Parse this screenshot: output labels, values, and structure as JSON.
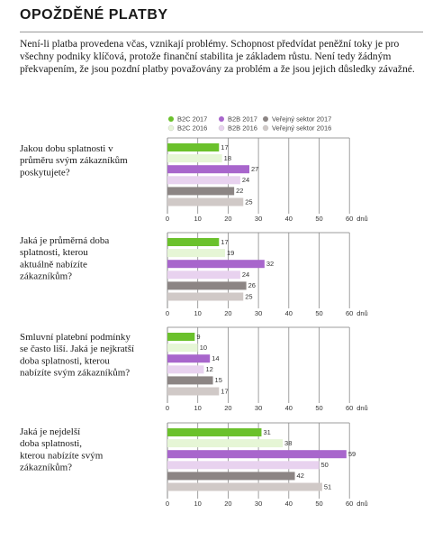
{
  "page": {
    "title": "OPOŽDĚNÉ PLATBY",
    "intro": "Není-li platba provedena včas, vznikají problémy. Schopnost předvídat peněžní toky je pro všechny podniky klíčová, protože finanční stabilita je základem růstu. Není tedy žádným překvapením, že jsou pozdní platby považovány za problém a že jsou jejich důsledky závažné."
  },
  "chart_data": {
    "type": "bar",
    "orientation": "horizontal",
    "unit": "dnů",
    "xlim": [
      0,
      60
    ],
    "ticks": [
      0,
      10,
      20,
      30,
      40,
      50,
      60
    ],
    "grid": true,
    "legend_position": "top-right",
    "series": [
      {
        "name": "B2C 2017",
        "color": "#6bc12c"
      },
      {
        "name": "B2C 2016",
        "color": "#e6f6d6"
      },
      {
        "name": "B2B 2017",
        "color": "#a866cc"
      },
      {
        "name": "B2B 2016",
        "color": "#e8d2ef"
      },
      {
        "name": "Veřejný sektor 2017",
        "color": "#8c8584"
      },
      {
        "name": "Veřejný sektor 2016",
        "color": "#d0c9c7"
      }
    ],
    "legend_order": [
      0,
      2,
      4,
      1,
      3,
      5
    ],
    "questions": [
      {
        "lines": [
          "Jakou dobu splatnosti v",
          "průměru svým zákazníkům",
          "poskytujete?"
        ],
        "values": [
          17,
          18,
          27,
          24,
          22,
          25
        ]
      },
      {
        "lines": [
          "Jaká je průměrná doba",
          "splatnosti, kterou",
          "aktuálně nabízíte",
          "zákazníkům?"
        ],
        "values": [
          17,
          19,
          32,
          24,
          26,
          25
        ]
      },
      {
        "lines": [
          "Smluvní platební podmínky",
          "se často liší. Jaká je nejkratší",
          "doba splatnosti, kterou",
          "nabízíte svým zákazníkům?"
        ],
        "values": [
          9,
          10,
          14,
          12,
          15,
          17
        ]
      },
      {
        "lines": [
          "Jaká je nejdelší",
          "doba splatnosti,",
          "kterou nabízíte svým",
          "zákazníkům?"
        ],
        "values": [
          31,
          38,
          59,
          50,
          42,
          51
        ]
      }
    ]
  }
}
